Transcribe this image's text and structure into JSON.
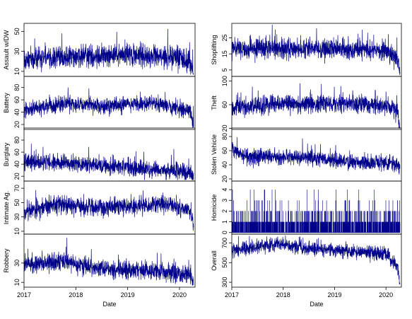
{
  "colors": {
    "series": "#00008b",
    "frame": "#000000",
    "background": "#ffffff"
  },
  "chart_data": [
    {
      "type": "line",
      "column": "left",
      "ylabel": "Assault w/DW",
      "xlabel": "",
      "yticks": [
        10,
        30,
        50
      ],
      "ylim": [
        5,
        58
      ],
      "xlim": [
        2017,
        2020.3
      ],
      "xticks": [
        2017,
        2018,
        2019,
        2020
      ],
      "xtick_labels": [
        "2017",
        "2018",
        "2019",
        "2020"
      ],
      "x_range": [
        2017.0,
        2020.27
      ],
      "level_segments": [
        [
          2017.0,
          22
        ],
        [
          2018.0,
          26
        ],
        [
          2019.0,
          27
        ],
        [
          2020.0,
          24
        ],
        [
          2020.27,
          18
        ]
      ],
      "noise": 7,
      "min": 7,
      "max": 57,
      "end_drop": 12
    },
    {
      "type": "line",
      "column": "left",
      "ylabel": "Battery",
      "xlabel": "",
      "yticks": [
        20,
        40,
        60,
        80
      ],
      "ylim": [
        12,
        98
      ],
      "xlim": [
        2017,
        2020.3
      ],
      "xticks": [
        2017,
        2018,
        2019,
        2020
      ],
      "xtick_labels": [
        "2017",
        "2018",
        "2019",
        "2020"
      ],
      "x_range": [
        2017.0,
        2020.27
      ],
      "level_segments": [
        [
          2017.0,
          42
        ],
        [
          2017.8,
          55
        ],
        [
          2018.6,
          50
        ],
        [
          2019.5,
          55
        ],
        [
          2020.27,
          40
        ]
      ],
      "noise": 8,
      "min": 15,
      "max": 94,
      "end_drop": 25
    },
    {
      "type": "line",
      "column": "left",
      "ylabel": "Burglary",
      "xlabel": "",
      "yticks": [
        20,
        40,
        60,
        80
      ],
      "ylim": [
        12,
        100
      ],
      "xlim": [
        2017,
        2020.3
      ],
      "xticks": [
        2017,
        2018,
        2019,
        2020
      ],
      "xtick_labels": [
        "2017",
        "2018",
        "2019",
        "2020"
      ],
      "x_range": [
        2017.0,
        2020.27
      ],
      "level_segments": [
        [
          2017.0,
          45
        ],
        [
          2018.0,
          40
        ],
        [
          2019.0,
          35
        ],
        [
          2020.0,
          28
        ],
        [
          2020.27,
          25
        ]
      ],
      "noise": 9,
      "min": 14,
      "max": 96,
      "end_drop": 5
    },
    {
      "type": "line",
      "column": "left",
      "ylabel": "Intimate Ag.",
      "xlabel": "",
      "yticks": [
        10,
        30,
        50,
        70
      ],
      "ylim": [
        6,
        80
      ],
      "xlim": [
        2017,
        2020.3
      ],
      "xticks": [
        2017,
        2018,
        2019,
        2020
      ],
      "xtick_labels": [
        "2017",
        "2018",
        "2019",
        "2020"
      ],
      "x_range": [
        2017.0,
        2020.27
      ],
      "level_segments": [
        [
          2017.0,
          35
        ],
        [
          2017.6,
          48
        ],
        [
          2018.5,
          42
        ],
        [
          2019.7,
          48
        ],
        [
          2020.27,
          38
        ]
      ],
      "noise": 8,
      "min": 8,
      "max": 76,
      "end_drop": 20
    },
    {
      "type": "line",
      "column": "left",
      "ylabel": "Robbery",
      "xlabel": "Date",
      "yticks": [
        10,
        30
      ],
      "ylim": [
        5,
        60
      ],
      "xlim": [
        2017,
        2020.3
      ],
      "xticks": [
        2017,
        2018,
        2019,
        2020
      ],
      "xtick_labels": [
        "2017",
        "2018",
        "2019",
        "2020"
      ],
      "x_range": [
        2017.0,
        2020.27
      ],
      "level_segments": [
        [
          2017.0,
          28
        ],
        [
          2017.7,
          32
        ],
        [
          2018.5,
          24
        ],
        [
          2019.5,
          22
        ],
        [
          2020.27,
          18
        ]
      ],
      "noise": 6,
      "min": 7,
      "max": 56,
      "end_drop": 8
    },
    {
      "type": "line",
      "column": "right",
      "ylabel": "Shoplifting",
      "xlabel": "",
      "yticks": [
        5,
        15,
        25
      ],
      "ylim": [
        1,
        34
      ],
      "xlim": [
        2017,
        2020.3
      ],
      "xticks": [
        2017,
        2018,
        2019,
        2020
      ],
      "xtick_labels": [
        "2017",
        "2018",
        "2019",
        "2020"
      ],
      "x_range": [
        2017.0,
        2020.27
      ],
      "level_segments": [
        [
          2017.0,
          19
        ],
        [
          2018.0,
          18
        ],
        [
          2019.0,
          18
        ],
        [
          2020.0,
          17
        ],
        [
          2020.27,
          12
        ]
      ],
      "noise": 4,
      "min": 2,
      "max": 33,
      "end_drop": 10
    },
    {
      "type": "line",
      "column": "right",
      "ylabel": "Theft",
      "xlabel": "",
      "yticks": [
        20,
        60,
        100
      ],
      "ylim": [
        18,
        108
      ],
      "xlim": [
        2017,
        2020.3
      ],
      "xticks": [
        2017,
        2018,
        2019,
        2020
      ],
      "xtick_labels": [
        "2017",
        "2018",
        "2019",
        "2020"
      ],
      "x_range": [
        2017.0,
        2020.27
      ],
      "level_segments": [
        [
          2017.0,
          55
        ],
        [
          2018.0,
          62
        ],
        [
          2019.0,
          62
        ],
        [
          2020.0,
          60
        ],
        [
          2020.27,
          45
        ]
      ],
      "noise": 10,
      "min": 20,
      "max": 103,
      "end_drop": 28
    },
    {
      "type": "line",
      "column": "right",
      "ylabel": "Stolen Vehicle",
      "xlabel": "",
      "yticks": [
        20,
        40,
        60,
        80
      ],
      "ylim": [
        17,
        92
      ],
      "xlim": [
        2017,
        2020.3
      ],
      "xticks": [
        2017,
        2018,
        2019,
        2020
      ],
      "xtick_labels": [
        "2017",
        "2018",
        "2019",
        "2020"
      ],
      "x_range": [
        2017.0,
        2020.27
      ],
      "level_segments": [
        [
          2017.0,
          62
        ],
        [
          2017.3,
          52
        ],
        [
          2018.5,
          50
        ],
        [
          2019.5,
          43
        ],
        [
          2020.27,
          42
        ]
      ],
      "noise": 7,
      "min": 20,
      "max": 90,
      "end_drop": 5
    },
    {
      "type": "bar",
      "column": "right",
      "ylabel": "Homicide",
      "xlabel": "",
      "yticks": [
        0,
        1,
        2,
        3,
        4
      ],
      "ylim": [
        -0.15,
        4.8
      ],
      "xlim": [
        2017,
        2020.3
      ],
      "xticks": [
        2017,
        2018,
        2019,
        2020
      ],
      "xtick_labels": [
        "2017",
        "2018",
        "2019",
        "2020"
      ],
      "x_range": [
        2017.0,
        2020.27
      ],
      "integer_counts": true,
      "level_segments": [
        [
          2017.0,
          0.8
        ],
        [
          2020.27,
          0.8
        ]
      ],
      "noise": 0,
      "min": 0,
      "max": 5,
      "end_drop": 0
    },
    {
      "type": "line",
      "column": "right",
      "ylabel": "Overall",
      "xlabel": "Date",
      "yticks": [
        300,
        500,
        700
      ],
      "ylim": [
        250,
        790
      ],
      "xlim": [
        2017,
        2020.3
      ],
      "xticks": [
        2017,
        2018,
        2019,
        2020
      ],
      "xtick_labels": [
        "2017",
        "2018",
        "2019",
        "2020"
      ],
      "x_range": [
        2017.0,
        2020.27
      ],
      "level_segments": [
        [
          2017.0,
          620
        ],
        [
          2017.9,
          690
        ],
        [
          2018.4,
          650
        ],
        [
          2019.5,
          610
        ],
        [
          2020.0,
          580
        ],
        [
          2020.27,
          450
        ]
      ],
      "noise": 45,
      "min": 280,
      "max": 780,
      "end_drop": 170
    }
  ]
}
